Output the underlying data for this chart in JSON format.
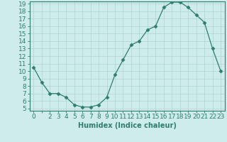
{
  "xlabel": "Humidex (Indice chaleur)",
  "x": [
    0,
    1,
    2,
    3,
    4,
    5,
    6,
    7,
    8,
    9,
    10,
    11,
    12,
    13,
    14,
    15,
    16,
    17,
    18,
    19,
    20,
    21,
    22,
    23
  ],
  "y": [
    10.5,
    8.5,
    7.0,
    7.0,
    6.5,
    5.5,
    5.2,
    5.2,
    5.5,
    6.5,
    9.5,
    11.5,
    13.5,
    14.0,
    15.5,
    16.0,
    18.5,
    19.2,
    19.2,
    18.5,
    17.5,
    16.5,
    13.0,
    10.0
  ],
  "line_color": "#2e7d6e",
  "marker_size": 2.5,
  "background_color": "#ceecea",
  "grid_color": "#aed4d0",
  "ylim_min": 5,
  "ylim_max": 19,
  "fontsize_label": 7,
  "fontsize_tick": 6.5
}
